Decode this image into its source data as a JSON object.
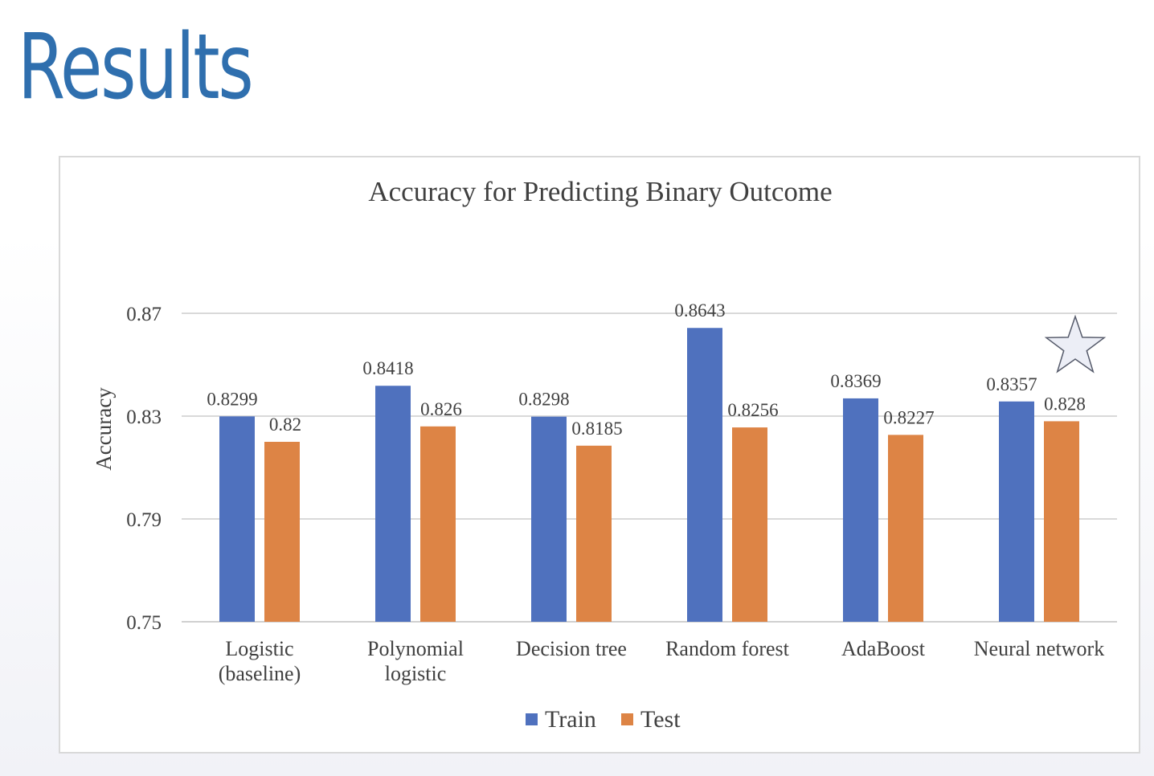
{
  "slide": {
    "title": "Results"
  },
  "chart_data": {
    "type": "bar",
    "title": "Accuracy for Predicting Binary Outcome",
    "xlabel": "",
    "ylabel": "Accuracy",
    "ylim": [
      0.75,
      0.87
    ],
    "yticks": [
      "0.75",
      "0.79",
      "0.83",
      "0.87"
    ],
    "grid": true,
    "legend": "bottom",
    "categories": [
      [
        "Logistic",
        "(baseline)"
      ],
      [
        "Polynomial",
        "logistic"
      ],
      [
        "Decision tree"
      ],
      [
        "Random forest"
      ],
      [
        "AdaBoost"
      ],
      [
        "Neural network"
      ]
    ],
    "series": [
      {
        "name": "Train",
        "color": "#4f71be",
        "values": [
          0.8299,
          0.8418,
          0.8298,
          0.8643,
          0.8369,
          0.8357
        ],
        "labels": [
          "0.8299",
          "0.8418",
          "0.8298",
          "0.8643",
          "0.8369",
          "0.8357"
        ]
      },
      {
        "name": "Test",
        "color": "#dd8445",
        "values": [
          0.82,
          0.826,
          0.8185,
          0.8256,
          0.8227,
          0.828
        ],
        "labels": [
          "0.82",
          "0.826",
          "0.8185",
          "0.8256",
          "0.8227",
          "0.828"
        ]
      }
    ],
    "annotations": [
      {
        "type": "star-icon",
        "category": "Neural network"
      }
    ]
  }
}
